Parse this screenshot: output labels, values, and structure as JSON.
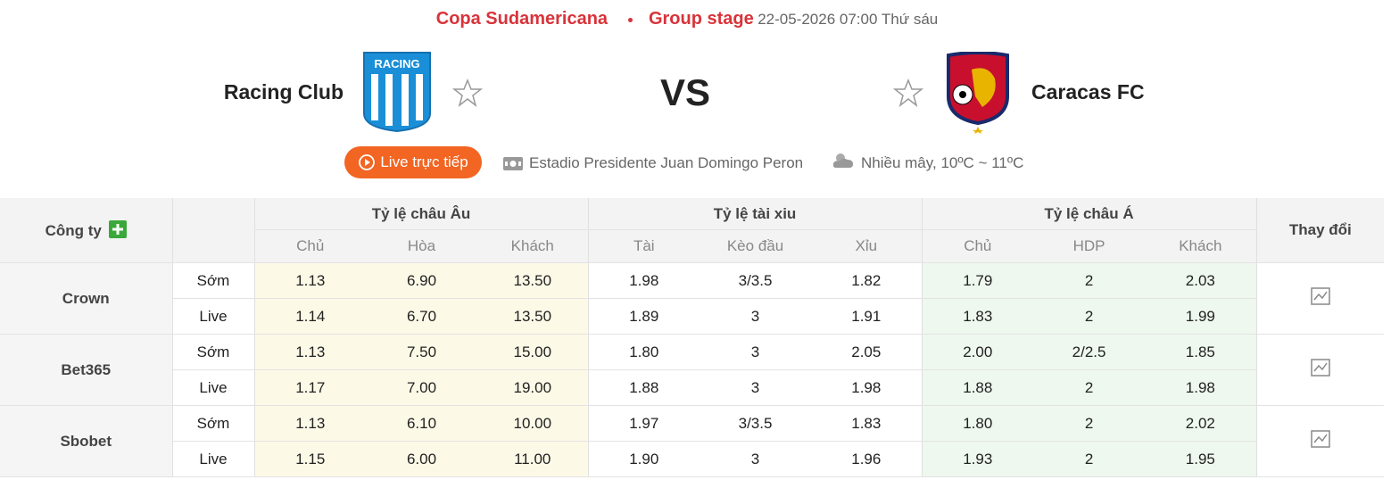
{
  "header": {
    "league": "Copa Sudamericana",
    "stage": "Group stage",
    "datetime": "22-05-2026 07:00",
    "weekday": "Thứ sáu"
  },
  "match": {
    "home": "Racing Club",
    "home_logo_text": "RACING",
    "vs": "VS",
    "away": "Caracas FC"
  },
  "info": {
    "live_button": "Live trực tiếp",
    "stadium": "Estadio Presidente Juan Domingo Peron",
    "weather": "Nhiều mây, 10ºC ~ 11ºC"
  },
  "table": {
    "company_header": "Công ty",
    "groups": [
      "Tỷ lệ châu Âu",
      "Tỷ lệ tài xiu",
      "Tỷ lệ châu Á"
    ],
    "change_header": "Thay đổi",
    "subheaders": [
      "Chủ",
      "Hòa",
      "Khách",
      "Tài",
      "Kèo đầu",
      "Xỉu",
      "Chủ",
      "HDP",
      "Khách"
    ],
    "companies": [
      {
        "name": "Crown",
        "rows": [
          {
            "phase": "Sớm",
            "odds": [
              "1.13",
              "6.90",
              "13.50",
              "1.98",
              "3/3.5",
              "1.82",
              "1.79",
              "2",
              "2.03"
            ]
          },
          {
            "phase": "Live",
            "odds": [
              "1.14",
              "6.70",
              "13.50",
              "1.89",
              "3",
              "1.91",
              "1.83",
              "2",
              "1.99"
            ]
          }
        ]
      },
      {
        "name": "Bet365",
        "rows": [
          {
            "phase": "Sớm",
            "odds": [
              "1.13",
              "7.50",
              "15.00",
              "1.80",
              "3",
              "2.05",
              "2.00",
              "2/2.5",
              "1.85"
            ]
          },
          {
            "phase": "Live",
            "odds": [
              "1.17",
              "7.00",
              "19.00",
              "1.88",
              "3",
              "1.98",
              "1.88",
              "2",
              "1.98"
            ]
          }
        ]
      },
      {
        "name": "Sbobet",
        "rows": [
          {
            "phase": "Sớm",
            "odds": [
              "1.13",
              "6.10",
              "10.00",
              "1.97",
              "3/3.5",
              "1.83",
              "1.80",
              "2",
              "2.02"
            ]
          },
          {
            "phase": "Live",
            "odds": [
              "1.15",
              "6.00",
              "11.00",
              "1.90",
              "3",
              "1.96",
              "1.93",
              "2",
              "1.95"
            ]
          }
        ]
      }
    ]
  }
}
